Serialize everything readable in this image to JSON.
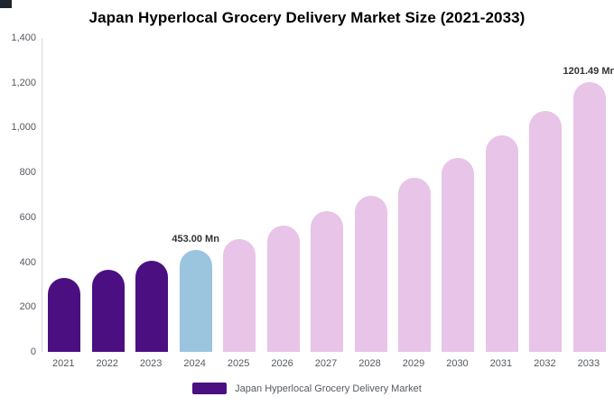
{
  "chart_data": {
    "type": "bar",
    "title": "Japan Hyperlocal Grocery Delivery Market Size (2021-2033)",
    "categories": [
      "2021",
      "2022",
      "2023",
      "2024",
      "2025",
      "2026",
      "2027",
      "2028",
      "2029",
      "2030",
      "2031",
      "2032",
      "2033"
    ],
    "values": [
      330,
      368,
      407,
      453,
      504,
      562,
      626,
      697,
      777,
      865,
      964,
      1074,
      1201.49
    ],
    "unit": "Mn",
    "bar_labels": [
      "",
      "",
      "",
      "453.00 Mn",
      "",
      "",
      "",
      "",
      "",
      "",
      "",
      "",
      "1201.49 Mn"
    ],
    "bar_colors": [
      "#4b0f82",
      "#4b0f82",
      "#4b0f82",
      "#9bc4df",
      "#e7c4e8",
      "#e7c4e8",
      "#e7c4e8",
      "#e7c4e8",
      "#e7c4e8",
      "#e7c4e8",
      "#e7c4e8",
      "#e7c4e8",
      "#e7c4e8"
    ],
    "xlabel": "",
    "ylabel": "",
    "ylim": [
      0,
      1400
    ],
    "yticks": [
      {
        "value": 0,
        "label": "0"
      },
      {
        "value": 200,
        "label": "200"
      },
      {
        "value": 400,
        "label": "400"
      },
      {
        "value": 600,
        "label": "600"
      },
      {
        "value": 800,
        "label": "800"
      },
      {
        "value": 1000,
        "label": "1,000"
      },
      {
        "value": 1200,
        "label": "1,200"
      },
      {
        "value": 1400,
        "label": "1,400"
      }
    ],
    "grid": false,
    "legend": {
      "position": "bottom",
      "items": [
        {
          "label": "Japan Hyperlocal Grocery Delivery Market",
          "color": "#4b0f82"
        }
      ]
    }
  }
}
